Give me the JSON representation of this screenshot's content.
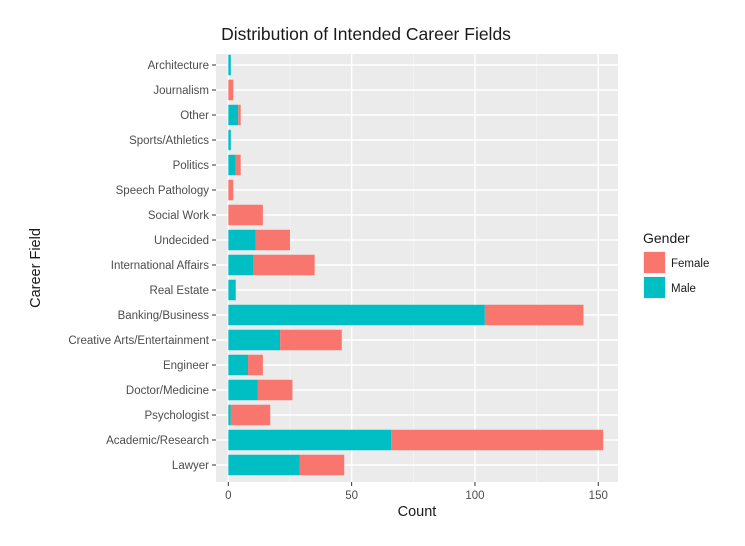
{
  "chart_data": {
    "type": "bar",
    "orientation": "horizontal",
    "stacked": true,
    "title": "Distribution of Intended Career Fields",
    "xlabel": "Count",
    "ylabel": "Career Field",
    "xlim": [
      -5,
      158
    ],
    "xticks": [
      0,
      50,
      100,
      150
    ],
    "grid": true,
    "legend": {
      "title": "Gender",
      "position": "right"
    },
    "categories": [
      "Architecture",
      "Journalism",
      "Other",
      "Sports/Athletics",
      "Politics",
      "Speech Pathology",
      "Social Work",
      "Undecided",
      "International Affairs",
      "Real Estate",
      "Banking/Business",
      "Creative Arts/Entertainment",
      "Engineer",
      "Doctor/Medicine",
      "Psychologist",
      "Academic/Research",
      "Lawyer"
    ],
    "series": [
      {
        "name": "Male",
        "color": "#00BFC4",
        "values": [
          1,
          0,
          4,
          1,
          3,
          0,
          0,
          11,
          10,
          3,
          104,
          21,
          8,
          12,
          1,
          66,
          29
        ]
      },
      {
        "name": "Female",
        "color": "#F8766D",
        "values": [
          0,
          2,
          1,
          0,
          2,
          2,
          14,
          14,
          25,
          0,
          40,
          25,
          6,
          14,
          16,
          86,
          18
        ]
      }
    ],
    "legend_order": [
      "Female",
      "Male"
    ]
  }
}
